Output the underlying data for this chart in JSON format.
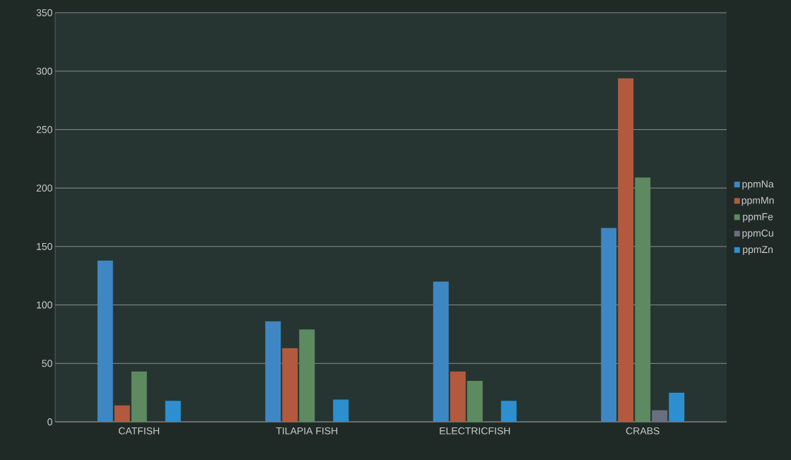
{
  "chart_data": {
    "type": "bar",
    "categories": [
      "CATFISH",
      "TILAPIA FISH",
      "ELECTRICFISH",
      "CRABS"
    ],
    "series": [
      {
        "name": "ppmNa",
        "color": "#3f87c4",
        "values": [
          138,
          86,
          120,
          166
        ]
      },
      {
        "name": "ppmMn",
        "color": "#b35a3e",
        "values": [
          14,
          63,
          43,
          294
        ]
      },
      {
        "name": "ppmFe",
        "color": "#5e8a62",
        "values": [
          43,
          79,
          35,
          209
        ]
      },
      {
        "name": "ppmCu",
        "color": "#6a6f80",
        "values": [
          null,
          null,
          null,
          10
        ]
      },
      {
        "name": "ppmZn",
        "color": "#2e8fd0",
        "values": [
          18,
          19,
          18,
          25
        ]
      }
    ],
    "ylim": [
      0,
      350
    ],
    "yticks": [
      0,
      50,
      100,
      150,
      200,
      250,
      300,
      350
    ],
    "grid": "y",
    "legend": "right"
  }
}
